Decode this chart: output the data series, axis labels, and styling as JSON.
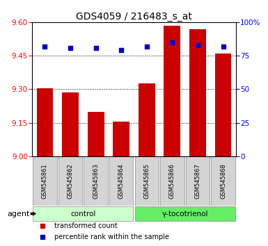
{
  "title": "GDS4059 / 216483_s_at",
  "samples": [
    "GSM545861",
    "GSM545862",
    "GSM545863",
    "GSM545864",
    "GSM545865",
    "GSM545866",
    "GSM545867",
    "GSM545868"
  ],
  "bar_values": [
    9.305,
    9.285,
    9.2,
    9.155,
    9.325,
    9.585,
    9.57,
    9.46
  ],
  "percentile_values": [
    82,
    81,
    81,
    79,
    82,
    85,
    83,
    82
  ],
  "bar_color": "#cc0000",
  "dot_color": "#0000cc",
  "ylim_left": [
    9.0,
    9.6
  ],
  "ylim_right": [
    0,
    100
  ],
  "yticks_left": [
    9.0,
    9.15,
    9.3,
    9.45,
    9.6
  ],
  "yticks_right": [
    0,
    25,
    50,
    75,
    100
  ],
  "ytick_labels_right": [
    "0",
    "25",
    "50",
    "75",
    "100%"
  ],
  "grid_values": [
    9.15,
    9.3,
    9.45
  ],
  "groups": [
    {
      "label": "control",
      "indices": [
        0,
        1,
        2,
        3
      ],
      "color": "#ccffcc"
    },
    {
      "label": "γ-tocotrienol",
      "indices": [
        4,
        5,
        6,
        7
      ],
      "color": "#66ee66"
    }
  ],
  "agent_label": "agent",
  "legend_items": [
    {
      "label": "transformed count",
      "color": "#cc0000"
    },
    {
      "label": "percentile rank within the sample",
      "color": "#0000cc"
    }
  ],
  "bar_width": 0.65,
  "title_fontsize": 10,
  "tick_fontsize": 7.5,
  "label_fontsize": 8
}
